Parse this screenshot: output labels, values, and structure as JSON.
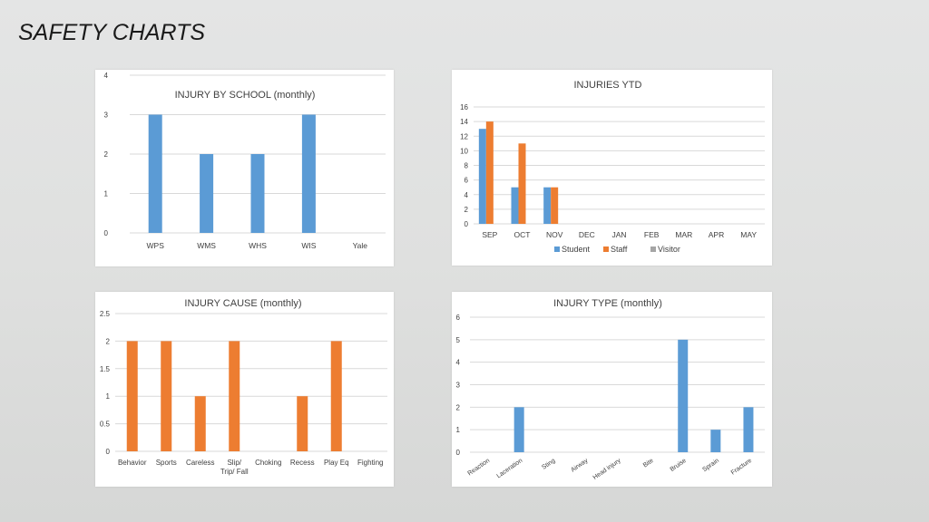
{
  "page": {
    "title": "SAFETY CHARTS"
  },
  "colors": {
    "blue": "#5b9bd5",
    "orange": "#ed7d31",
    "gray": "#a5a5a5",
    "grid": "#d9d9d9"
  },
  "chart_data": [
    {
      "type": "bar",
      "title": "INJURY BY SCHOOL (monthly)",
      "categories": [
        "WPS",
        "WMS",
        "WHS",
        "WIS",
        "Yale"
      ],
      "ylim": [
        0,
        4
      ],
      "yticks": [
        "0",
        "1",
        "2",
        "3",
        "4"
      ],
      "series": [
        {
          "values": [
            3,
            2,
            2,
            3,
            0
          ]
        }
      ],
      "grid": true,
      "legend": "none"
    },
    {
      "type": "bar",
      "title": "INJURIES YTD",
      "categories": [
        "SEP",
        "OCT",
        "NOV",
        "DEC",
        "JAN",
        "FEB",
        "MAR",
        "APR",
        "MAY"
      ],
      "ylim": [
        0,
        16
      ],
      "yticks": [
        "0",
        "2",
        "4",
        "6",
        "8",
        "10",
        "12",
        "14",
        "16"
      ],
      "series": [
        {
          "name": "Student",
          "values": [
            13,
            5,
            5,
            0,
            0,
            0,
            0,
            0,
            0
          ]
        },
        {
          "name": "Staff",
          "values": [
            14,
            11,
            5,
            0,
            0,
            0,
            0,
            0,
            0
          ]
        },
        {
          "name": "Visitor",
          "values": [
            0,
            0,
            0,
            0,
            0,
            0,
            0,
            0,
            0
          ]
        }
      ],
      "grid": true,
      "legend": "bottom"
    },
    {
      "type": "bar",
      "title": "INJURY CAUSE (monthly)",
      "categories": [
        "Behavior",
        "Sports",
        "Careless",
        "Slip/ Trip/ Fall",
        "Choking",
        "Recess",
        "Play Eq",
        "Fighting"
      ],
      "ylim": [
        0,
        2.5
      ],
      "yticks": [
        "0",
        "0.5",
        "1",
        "1.5",
        "2",
        "2.5"
      ],
      "series": [
        {
          "values": [
            2,
            2,
            1,
            2,
            0,
            1,
            2,
            0
          ]
        }
      ],
      "grid": true,
      "legend": "none"
    },
    {
      "type": "bar",
      "title": "INJURY TYPE (monthly)",
      "categories": [
        "Reaction",
        "Laceration",
        "Sting",
        "Airway",
        "Head injury",
        "Bite",
        "Bruise",
        "Sprain",
        "Fracture"
      ],
      "ylim": [
        0,
        6
      ],
      "yticks": [
        "0",
        "1",
        "2",
        "3",
        "4",
        "5",
        "6"
      ],
      "series": [
        {
          "values": [
            0,
            2,
            0,
            0,
            0,
            0,
            5,
            1,
            2
          ]
        }
      ],
      "grid": true,
      "legend": "none"
    }
  ]
}
